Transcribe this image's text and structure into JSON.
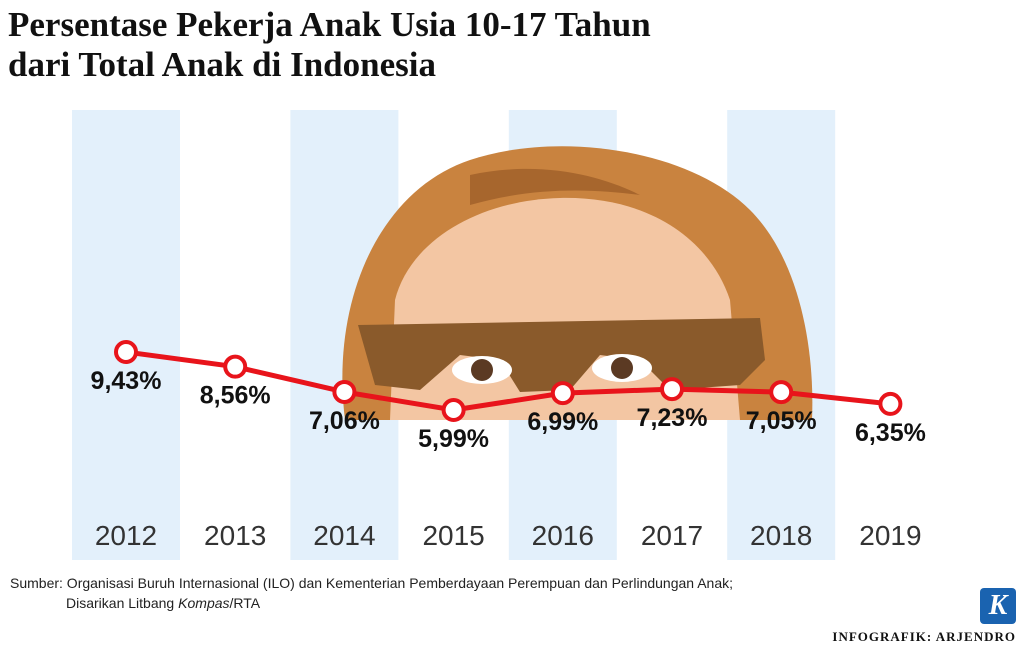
{
  "chart_data": {
    "type": "line",
    "title": [
      "Persentase Pekerja Anak Usia 10-17 Tahun",
      "dari Total Anak di Indonesia"
    ],
    "categories": [
      "2012",
      "2013",
      "2014",
      "2015",
      "2016",
      "2017",
      "2018",
      "2019"
    ],
    "values": [
      9.43,
      8.56,
      7.06,
      5.99,
      6.99,
      7.23,
      7.05,
      6.35
    ],
    "value_labels": [
      "9,43%",
      "8,56%",
      "7,06%",
      "5,99%",
      "6,99%",
      "7,23%",
      "7,05%",
      "6,35%"
    ],
    "color": "#e8141b",
    "source": [
      "Sumber: Organisasi Buruh Internasional (ILO) dan Kementerian Pemberdayaan Perempuan dan Perlindungan Anak;",
      "Disarikan Litbang",
      "Kompas",
      "/RTA"
    ],
    "credit": "INFOGRAFIK: ARJENDRO",
    "logo": "K"
  }
}
